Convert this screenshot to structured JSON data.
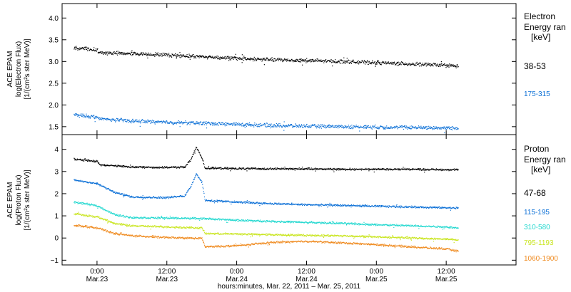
{
  "chart_data": [
    {
      "type": "scatter",
      "title": "",
      "ylabel": [
        "ACE EPAM",
        "log(Electron Flux)",
        "[1/(cm²s ster MeV)]"
      ],
      "ylim": [
        1.35,
        4.3
      ],
      "yticks": [
        1.5,
        2.0,
        2.5,
        3.0,
        3.5,
        4.0
      ],
      "ytick_labels": [
        "1.5",
        "2.0",
        "2.5",
        "3.0",
        "3.5",
        "4.0"
      ],
      "legend_title": [
        "Electron",
        "Energy ran",
        "[keV]"
      ],
      "series": [
        {
          "name": "38-53",
          "color": "#000000",
          "points": [
            [
              -4,
              3.31
            ],
            [
              0,
              3.27
            ],
            [
              0.2,
              3.2
            ],
            [
              6,
              3.18
            ],
            [
              12,
              3.15
            ],
            [
              18,
              3.11
            ],
            [
              24,
              3.07
            ],
            [
              30,
              3.04
            ],
            [
              36,
              3.02
            ],
            [
              42,
              3.0
            ],
            [
              48,
              2.97
            ],
            [
              54,
              2.94
            ],
            [
              60,
              2.91
            ],
            [
              62,
              2.89
            ]
          ]
        },
        {
          "name": "175-315",
          "color": "#0a6fd6",
          "points": [
            [
              -4,
              1.77
            ],
            [
              0,
              1.72
            ],
            [
              0.2,
              1.68
            ],
            [
              6,
              1.63
            ],
            [
              12,
              1.6
            ],
            [
              18,
              1.58
            ],
            [
              24,
              1.55
            ],
            [
              30,
              1.53
            ],
            [
              36,
              1.51
            ],
            [
              42,
              1.5
            ],
            [
              48,
              1.49
            ],
            [
              54,
              1.48
            ],
            [
              60,
              1.47
            ],
            [
              62,
              1.46
            ]
          ]
        }
      ]
    },
    {
      "type": "scatter",
      "title": "",
      "ylabel": [
        "ACE EPAM",
        "log(Proton Flux)",
        "[1/(cm²s ster MeV)]"
      ],
      "ylim": [
        -1.15,
        4.6
      ],
      "yticks": [
        -1,
        0,
        1,
        2,
        3,
        4
      ],
      "ytick_labels": [
        "−1",
        "0",
        "1",
        "2",
        "3",
        "4"
      ],
      "legend_title": [
        "Proton",
        "Energy ran",
        "[keV]"
      ],
      "series": [
        {
          "name": "47-68",
          "color": "#000000",
          "points": [
            [
              -4,
              3.55
            ],
            [
              0,
              3.45
            ],
            [
              0.5,
              3.3
            ],
            [
              6,
              3.2
            ],
            [
              12,
              3.18
            ],
            [
              15,
              3.2
            ],
            [
              16,
              3.5
            ],
            [
              17,
              4.1
            ],
            [
              18,
              3.6
            ],
            [
              18.5,
              3.15
            ],
            [
              24,
              3.13
            ],
            [
              30,
              3.12
            ],
            [
              36,
              3.12
            ],
            [
              42,
              3.1
            ],
            [
              48,
              3.1
            ],
            [
              54,
              3.1
            ],
            [
              60,
              3.08
            ],
            [
              62,
              3.08
            ]
          ]
        },
        {
          "name": "115-195",
          "color": "#0a6fd6",
          "points": [
            [
              -4,
              2.62
            ],
            [
              0,
              2.45
            ],
            [
              3,
              2.05
            ],
            [
              6,
              1.85
            ],
            [
              12,
              1.82
            ],
            [
              15,
              1.9
            ],
            [
              16,
              2.3
            ],
            [
              17,
              2.9
            ],
            [
              18,
              2.5
            ],
            [
              18.5,
              1.7
            ],
            [
              24,
              1.62
            ],
            [
              30,
              1.55
            ],
            [
              36,
              1.5
            ],
            [
              42,
              1.47
            ],
            [
              48,
              1.43
            ],
            [
              54,
              1.4
            ],
            [
              60,
              1.36
            ],
            [
              62,
              1.35
            ]
          ]
        },
        {
          "name": "310-580",
          "color": "#22d8cf",
          "points": [
            [
              -4,
              1.62
            ],
            [
              0,
              1.45
            ],
            [
              3,
              1.05
            ],
            [
              6,
              0.92
            ],
            [
              12,
              0.9
            ],
            [
              18,
              0.88
            ],
            [
              24,
              0.8
            ],
            [
              30,
              0.75
            ],
            [
              36,
              0.7
            ],
            [
              42,
              0.66
            ],
            [
              48,
              0.6
            ],
            [
              54,
              0.55
            ],
            [
              60,
              0.5
            ],
            [
              62,
              0.45
            ]
          ]
        },
        {
          "name": "795-1193",
          "color": "#c9e51f",
          "points": [
            [
              -4,
              1.1
            ],
            [
              0,
              0.95
            ],
            [
              3,
              0.65
            ],
            [
              6,
              0.55
            ],
            [
              12,
              0.5
            ],
            [
              18,
              0.45
            ],
            [
              18.5,
              0.2
            ],
            [
              24,
              0.18
            ],
            [
              30,
              0.15
            ],
            [
              36,
              0.12
            ],
            [
              42,
              0.1
            ],
            [
              48,
              0.05
            ],
            [
              54,
              0.0
            ],
            [
              60,
              -0.05
            ],
            [
              62,
              -0.1
            ]
          ]
        },
        {
          "name": "1060-1900",
          "color": "#ef8a1f",
          "points": [
            [
              -4,
              0.58
            ],
            [
              0,
              0.45
            ],
            [
              3,
              0.2
            ],
            [
              6,
              0.1
            ],
            [
              12,
              0.02
            ],
            [
              18,
              -0.02
            ],
            [
              18.5,
              -0.4
            ],
            [
              24,
              -0.35
            ],
            [
              30,
              -0.2
            ],
            [
              36,
              -0.15
            ],
            [
              42,
              -0.22
            ],
            [
              48,
              -0.3
            ],
            [
              54,
              -0.4
            ],
            [
              60,
              -0.5
            ],
            [
              62,
              -0.6
            ]
          ]
        }
      ]
    }
  ],
  "x_axis": {
    "title": "hours:minutes, Mar. 22, 2011 – Mar. 25, 2011",
    "xlim": [
      -6,
      72
    ],
    "ticks": [
      {
        "x": 0,
        "time": "0:00",
        "date": "Mar.23"
      },
      {
        "x": 12,
        "time": "12:00",
        "date": "Mar.23"
      },
      {
        "x": 24,
        "time": "0:00",
        "date": "Mar.24"
      },
      {
        "x": 36,
        "time": "12:00",
        "date": "Mar.24"
      },
      {
        "x": 48,
        "time": "0:00",
        "date": "Mar.25"
      },
      {
        "x": 60,
        "time": "12:00",
        "date": "Mar.25"
      }
    ]
  }
}
